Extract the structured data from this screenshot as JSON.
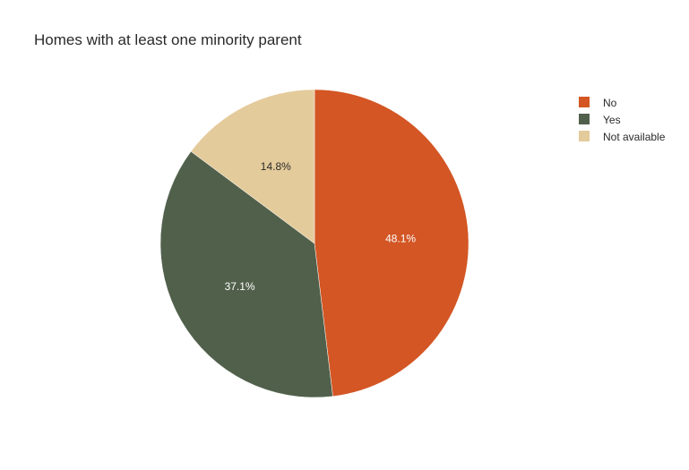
{
  "chart_data": {
    "type": "pie",
    "title": "Homes with at least one minority parent",
    "categories": [
      "No",
      "Yes",
      "Not available"
    ],
    "values": [
      48.1,
      37.1,
      14.8
    ],
    "labels": [
      "48.1%",
      "37.1%",
      "14.8%"
    ],
    "colors": [
      "#d35624",
      "#51604b",
      "#e4cb9b"
    ],
    "label_colors": [
      "#ffffff",
      "#ffffff",
      "#2a2a2a"
    ],
    "legend": {
      "position": "top-right",
      "entries": [
        "No",
        "Yes",
        "Not available"
      ]
    }
  }
}
